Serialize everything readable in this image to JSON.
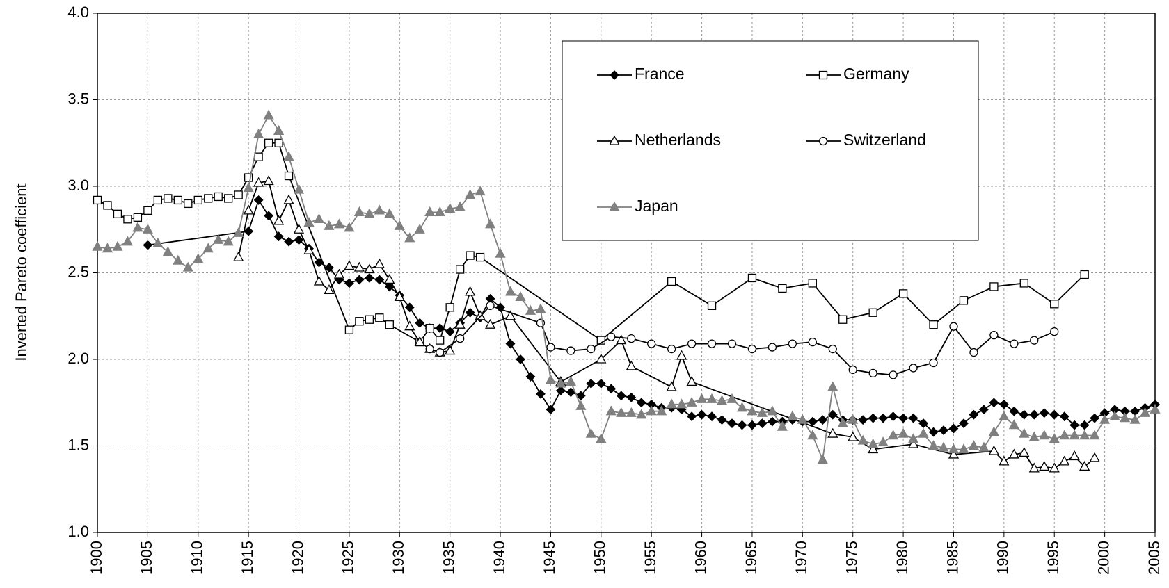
{
  "chart_data": {
    "type": "line",
    "y_label": "Inverted Pareto coefficient",
    "xlim": [
      1900,
      2005
    ],
    "xticks": [
      1900,
      1905,
      1910,
      1915,
      1920,
      1925,
      1930,
      1935,
      1940,
      1945,
      1950,
      1955,
      1960,
      1965,
      1970,
      1975,
      1980,
      1985,
      1990,
      1995,
      2000,
      2005
    ],
    "ylim": [
      1,
      4
    ],
    "yticks": [
      {
        "value": 1,
        "label": "1.0"
      },
      1.5,
      {
        "value": 2,
        "label": "2.0"
      },
      2.5,
      {
        "value": 3,
        "label": "3.0"
      },
      3.5,
      {
        "value": 4,
        "label": "4.0"
      }
    ],
    "grid": true,
    "series": [
      {
        "name": "France",
        "color": "#000000",
        "marker": "diamond",
        "marker_fill": "#000000",
        "x": [
          1905,
          1915,
          1916,
          1917,
          1918,
          1919,
          1920,
          1921,
          1922,
          1923,
          1924,
          1925,
          1926,
          1927,
          1928,
          1929,
          1930,
          1931,
          1932,
          1933,
          1934,
          1935,
          1936,
          1937,
          1938,
          1939,
          1940,
          1941,
          1942,
          1943,
          1944,
          1945,
          1946,
          1947,
          1948,
          1949,
          1950,
          1951,
          1952,
          1953,
          1954,
          1955,
          1956,
          1957,
          1958,
          1959,
          1960,
          1961,
          1962,
          1963,
          1964,
          1965,
          1966,
          1967,
          1968,
          1969,
          1970,
          1971,
          1972,
          1973,
          1974,
          1975,
          1976,
          1977,
          1978,
          1979,
          1980,
          1981,
          1982,
          1983,
          1984,
          1985,
          1986,
          1987,
          1988,
          1989,
          1990,
          1991,
          1992,
          1993,
          1994,
          1995,
          1996,
          1997,
          1998,
          1999,
          2000,
          2001,
          2002,
          2003,
          2004,
          2005
        ],
        "values": [
          2.66,
          2.74,
          2.92,
          2.83,
          2.71,
          2.68,
          2.69,
          2.64,
          2.56,
          2.53,
          2.46,
          2.44,
          2.46,
          2.47,
          2.46,
          2.42,
          2.37,
          2.3,
          2.21,
          2.18,
          2.18,
          2.16,
          2.21,
          2.27,
          2.24,
          2.35,
          2.3,
          2.09,
          2.0,
          1.9,
          1.8,
          1.71,
          1.82,
          1.81,
          1.79,
          1.86,
          1.86,
          1.83,
          1.79,
          1.78,
          1.75,
          1.74,
          1.72,
          1.72,
          1.71,
          1.67,
          1.68,
          1.67,
          1.65,
          1.63,
          1.62,
          1.62,
          1.63,
          1.64,
          1.64,
          1.65,
          1.64,
          1.64,
          1.65,
          1.68,
          1.65,
          1.65,
          1.65,
          1.66,
          1.66,
          1.67,
          1.66,
          1.66,
          1.63,
          1.58,
          1.59,
          1.6,
          1.63,
          1.68,
          1.71,
          1.75,
          1.74,
          1.7,
          1.68,
          1.68,
          1.69,
          1.68,
          1.67,
          1.62,
          1.62,
          1.66,
          1.69,
          1.71,
          1.7,
          1.7,
          1.72,
          1.74
        ]
      },
      {
        "name": "Germany",
        "color": "#000000",
        "marker": "square",
        "marker_fill": "#ffffff",
        "x": [
          1900,
          1901,
          1902,
          1903,
          1904,
          1905,
          1906,
          1907,
          1908,
          1909,
          1910,
          1911,
          1912,
          1913,
          1914,
          1915,
          1916,
          1917,
          1918,
          1919,
          1925,
          1926,
          1927,
          1928,
          1929,
          1932,
          1933,
          1934,
          1935,
          1936,
          1937,
          1938,
          1950,
          1957,
          1961,
          1965,
          1968,
          1971,
          1974,
          1977,
          1980,
          1983,
          1986,
          1989,
          1992,
          1995,
          1998
        ],
        "values": [
          2.92,
          2.89,
          2.84,
          2.81,
          2.82,
          2.86,
          2.92,
          2.93,
          2.92,
          2.9,
          2.92,
          2.93,
          2.94,
          2.93,
          2.95,
          3.05,
          3.17,
          3.25,
          3.25,
          3.06,
          2.17,
          2.22,
          2.23,
          2.24,
          2.2,
          2.1,
          2.18,
          2.11,
          2.3,
          2.52,
          2.6,
          2.59,
          2.11,
          2.45,
          2.31,
          2.47,
          2.41,
          2.44,
          2.23,
          2.27,
          2.38,
          2.2,
          2.34,
          2.42,
          2.44,
          2.32,
          2.49
        ]
      },
      {
        "name": "Netherlands",
        "color": "#000000",
        "marker": "triangle",
        "marker_fill": "#ffffff",
        "x": [
          1914,
          1915,
          1916,
          1917,
          1918,
          1919,
          1920,
          1921,
          1922,
          1923,
          1924,
          1925,
          1926,
          1927,
          1928,
          1929,
          1930,
          1931,
          1932,
          1933,
          1934,
          1935,
          1936,
          1937,
          1938,
          1939,
          1941,
          1946,
          1950,
          1952,
          1953,
          1957,
          1958,
          1959,
          1973,
          1975,
          1977,
          1981,
          1985,
          1989,
          1990,
          1991,
          1992,
          1993,
          1994,
          1995,
          1996,
          1997,
          1998,
          1999
        ],
        "values": [
          2.59,
          2.86,
          3.02,
          3.03,
          2.8,
          2.92,
          2.75,
          2.63,
          2.45,
          2.4,
          2.49,
          2.54,
          2.53,
          2.52,
          2.55,
          2.46,
          2.36,
          2.19,
          2.1,
          2.06,
          2.04,
          2.05,
          2.2,
          2.39,
          2.25,
          2.2,
          2.25,
          1.87,
          2.0,
          2.11,
          1.96,
          1.84,
          2.02,
          1.87,
          1.57,
          1.55,
          1.48,
          1.51,
          1.45,
          1.47,
          1.41,
          1.45,
          1.46,
          1.37,
          1.38,
          1.37,
          1.41,
          1.44,
          1.38,
          1.43
        ]
      },
      {
        "name": "Switzerland",
        "color": "#000000",
        "marker": "circle",
        "marker_fill": "#ffffff",
        "x": [
          1933,
          1934,
          1936,
          1939,
          1944,
          1945,
          1947,
          1949,
          1951,
          1953,
          1955,
          1957,
          1959,
          1961,
          1963,
          1965,
          1967,
          1969,
          1971,
          1973,
          1975,
          1977,
          1979,
          1981,
          1983,
          1985,
          1987,
          1989,
          1991,
          1993,
          1995
        ],
        "values": [
          2.06,
          2.04,
          2.12,
          2.31,
          2.21,
          2.07,
          2.05,
          2.06,
          2.13,
          2.12,
          2.09,
          2.06,
          2.09,
          2.09,
          2.09,
          2.06,
          2.07,
          2.09,
          2.1,
          2.06,
          1.94,
          1.92,
          1.91,
          1.95,
          1.98,
          2.19,
          2.04,
          2.14,
          2.09,
          2.11,
          2.16
        ]
      },
      {
        "name": "Japan",
        "color": "#808080",
        "marker": "triangle",
        "marker_fill": "#808080",
        "x": [
          1900,
          1901,
          1902,
          1903,
          1904,
          1905,
          1906,
          1907,
          1908,
          1909,
          1910,
          1911,
          1912,
          1913,
          1914,
          1915,
          1916,
          1917,
          1918,
          1919,
          1920,
          1921,
          1922,
          1923,
          1924,
          1925,
          1926,
          1927,
          1928,
          1929,
          1930,
          1931,
          1932,
          1933,
          1934,
          1935,
          1936,
          1937,
          1938,
          1939,
          1940,
          1941,
          1942,
          1943,
          1944,
          1945,
          1946,
          1947,
          1948,
          1949,
          1950,
          1951,
          1952,
          1953,
          1954,
          1955,
          1956,
          1957,
          1958,
          1959,
          1960,
          1961,
          1962,
          1963,
          1964,
          1965,
          1966,
          1967,
          1968,
          1969,
          1970,
          1971,
          1972,
          1973,
          1974,
          1975,
          1976,
          1977,
          1978,
          1979,
          1980,
          1981,
          1982,
          1983,
          1984,
          1985,
          1986,
          1987,
          1988,
          1989,
          1990,
          1991,
          1992,
          1993,
          1994,
          1995,
          1996,
          1997,
          1998,
          1999,
          2000,
          2001,
          2002,
          2003,
          2004,
          2005
        ],
        "values": [
          2.65,
          2.64,
          2.65,
          2.68,
          2.76,
          2.75,
          2.67,
          2.62,
          2.57,
          2.53,
          2.58,
          2.64,
          2.69,
          2.68,
          2.73,
          2.99,
          3.3,
          3.41,
          3.32,
          3.17,
          2.98,
          2.79,
          2.81,
          2.77,
          2.78,
          2.76,
          2.85,
          2.84,
          2.86,
          2.84,
          2.77,
          2.7,
          2.75,
          2.85,
          2.85,
          2.87,
          2.88,
          2.95,
          2.97,
          2.78,
          2.61,
          2.39,
          2.36,
          2.28,
          2.29,
          1.88,
          1.86,
          1.87,
          1.73,
          1.57,
          1.54,
          1.7,
          1.69,
          1.69,
          1.68,
          1.7,
          1.7,
          1.74,
          1.74,
          1.75,
          1.77,
          1.77,
          1.76,
          1.77,
          1.72,
          1.7,
          1.69,
          1.7,
          1.61,
          1.67,
          1.65,
          1.56,
          1.42,
          1.84,
          1.63,
          1.65,
          1.53,
          1.51,
          1.52,
          1.56,
          1.57,
          1.54,
          1.57,
          1.5,
          1.49,
          1.48,
          1.48,
          1.5,
          1.49,
          1.58,
          1.67,
          1.62,
          1.57,
          1.55,
          1.56,
          1.54,
          1.56,
          1.56,
          1.56,
          1.56,
          1.65,
          1.67,
          1.66,
          1.65,
          1.69,
          1.71
        ]
      }
    ]
  }
}
